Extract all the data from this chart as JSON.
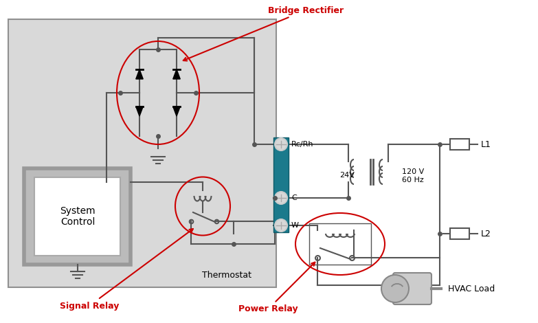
{
  "bg_color": "#d9d9d9",
  "wire_color": "#555555",
  "teal_color": "#1b7a8c",
  "annotation_color": "#cc0000",
  "label_bridge_rectifier": "Bridge Rectifier",
  "label_signal_relay": "Signal Relay",
  "label_power_relay": "Power Relay",
  "label_thermostat": "Thermostat",
  "label_system_control": "System\nControl",
  "label_hvac_load": "HVAC Load",
  "label_rc_rh": "Rc/Rh",
  "label_c": "C",
  "label_w": "W",
  "label_24v": "24V",
  "label_120v": "120 V\n60 Hz",
  "label_l1": "L1",
  "label_l2": "L2"
}
